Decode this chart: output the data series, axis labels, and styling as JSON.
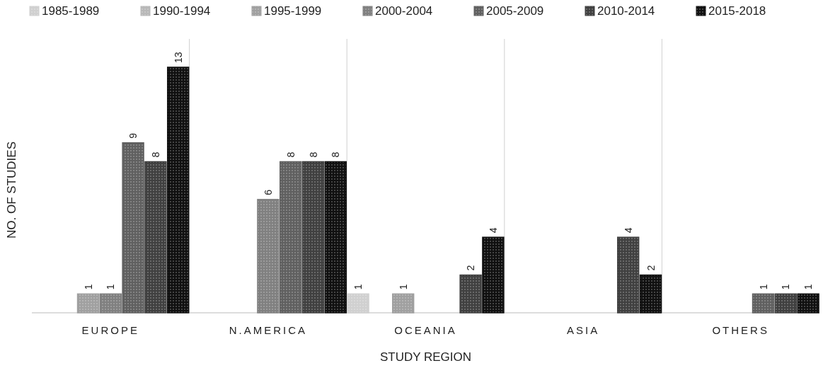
{
  "chart_data": {
    "type": "bar",
    "xlabel": "STUDY REGION",
    "ylabel": "NO. OF STUDIES",
    "categories": [
      "EUROPE",
      "N.AMERICA",
      "OCEANIA",
      "ASIA",
      "OTHERS"
    ],
    "series": [
      {
        "name": "1985-1989",
        "color": "#d0d0d0",
        "values": [
          null,
          null,
          1,
          null,
          null
        ]
      },
      {
        "name": "1990-1994",
        "color": "#b8b8b8",
        "values": [
          null,
          null,
          null,
          null,
          null
        ]
      },
      {
        "name": "1995-1999",
        "color": "#a0a0a0",
        "values": [
          1,
          null,
          1,
          null,
          null
        ]
      },
      {
        "name": "2000-2004",
        "color": "#808080",
        "values": [
          1,
          6,
          null,
          null,
          null
        ]
      },
      {
        "name": "2005-2009",
        "color": "#606060",
        "values": [
          9,
          8,
          null,
          null,
          1
        ]
      },
      {
        "name": "2010-2014",
        "color": "#404040",
        "values": [
          8,
          8,
          2,
          4,
          1
        ]
      },
      {
        "name": "2015-2018",
        "color": "#101010",
        "values": [
          13,
          8,
          4,
          2,
          1
        ]
      }
    ],
    "data_labels": true,
    "grid": "x",
    "legend": "top"
  }
}
